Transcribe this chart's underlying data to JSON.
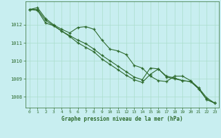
{
  "background_color": "#c8eef0",
  "grid_color": "#aaddcc",
  "line_color": "#2d6a2d",
  "xlabel": "Graphe pression niveau de la mer (hPa)",
  "xlim": [
    -0.5,
    23.5
  ],
  "ylim": [
    1007.4,
    1013.3
  ],
  "yticks": [
    1008,
    1009,
    1010,
    1011,
    1012
  ],
  "xticks": [
    0,
    1,
    2,
    3,
    4,
    5,
    6,
    7,
    8,
    9,
    10,
    11,
    12,
    13,
    14,
    15,
    16,
    17,
    18,
    19,
    20,
    21,
    22,
    23
  ],
  "line1": [
    1012.85,
    1012.95,
    1012.35,
    1012.0,
    1011.75,
    1011.55,
    1011.85,
    1011.9,
    1011.75,
    1011.15,
    1010.65,
    1010.55,
    1010.35,
    1009.75,
    1009.6,
    1009.15,
    1008.9,
    1008.85,
    1009.15,
    1009.15,
    1008.9,
    1008.5,
    1007.95,
    1007.65
  ],
  "line2": [
    1012.85,
    1012.85,
    1012.25,
    1011.95,
    1011.65,
    1011.4,
    1011.15,
    1010.95,
    1010.65,
    1010.3,
    1010.0,
    1009.7,
    1009.4,
    1009.1,
    1008.95,
    1009.6,
    1009.55,
    1009.15,
    1009.05,
    1008.9,
    1008.85,
    1008.45,
    1007.85,
    1007.65
  ],
  "line3": [
    1012.85,
    1012.8,
    1012.1,
    1011.95,
    1011.65,
    1011.35,
    1011.0,
    1010.75,
    1010.5,
    1010.1,
    1009.8,
    1009.5,
    1009.2,
    1008.95,
    1008.8,
    1009.25,
    1009.55,
    1009.1,
    1009.0,
    1008.9,
    1008.85,
    1008.45,
    1007.85,
    1007.65
  ]
}
